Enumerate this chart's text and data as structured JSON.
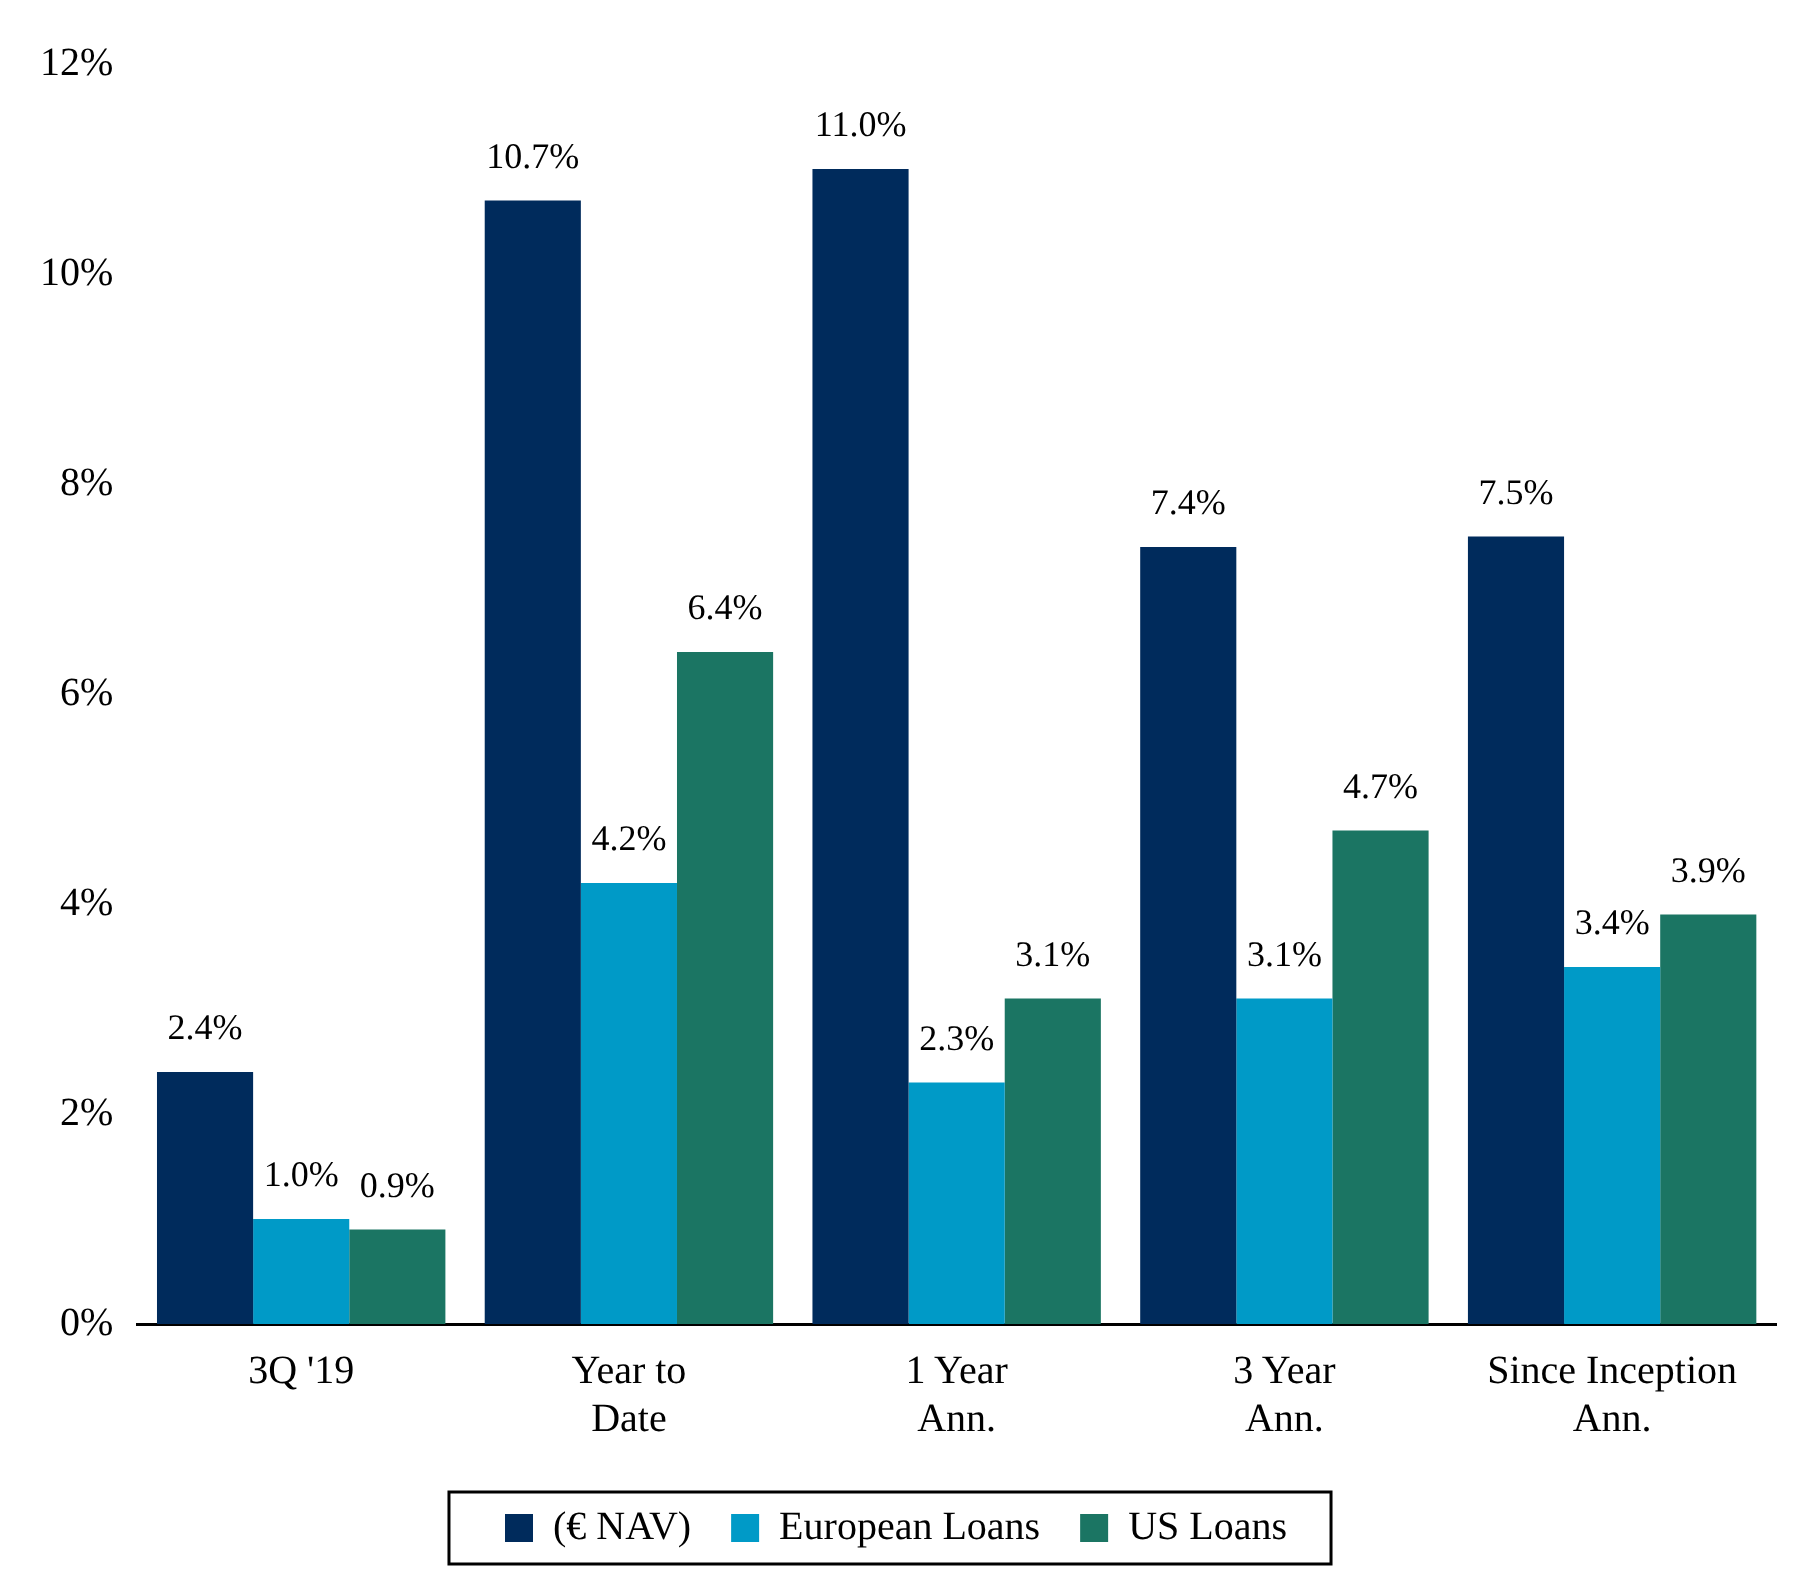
{
  "chart_data": {
    "type": "bar",
    "categories": [
      "3Q '19",
      "Year to\nDate",
      "1 Year\nAnn.",
      "3 Year\nAnn.",
      "Since Inception\nAnn."
    ],
    "series": [
      {
        "name": "(€ NAV)",
        "color": "#002b5c",
        "values": [
          2.4,
          10.7,
          11.0,
          7.4,
          7.5
        ],
        "value_labels": [
          "2.4%",
          "10.7%",
          "11.0%",
          "7.4%",
          "7.5%"
        ]
      },
      {
        "name": "European Loans",
        "color": "#009ac7",
        "values": [
          1.0,
          4.2,
          2.3,
          3.1,
          3.4
        ],
        "value_labels": [
          "1.0%",
          "4.2%",
          "2.3%",
          "3.1%",
          "3.4%"
        ]
      },
      {
        "name": "US Loans",
        "color": "#1b7563",
        "values": [
          0.9,
          6.4,
          3.1,
          4.7,
          3.9
        ],
        "value_labels": [
          "0.9%",
          "6.4%",
          "3.1%",
          "4.7%",
          "3.9%"
        ]
      }
    ],
    "ylim": [
      0,
      12
    ],
    "yticks": [
      {
        "value": 0,
        "label": "0%"
      },
      {
        "value": 2,
        "label": "2%"
      },
      {
        "value": 4,
        "label": "4%"
      },
      {
        "value": 6,
        "label": "6%"
      },
      {
        "value": 8,
        "label": "8%"
      },
      {
        "value": 10,
        "label": "10%"
      },
      {
        "value": 12,
        "label": "12%"
      }
    ],
    "grid": false,
    "legend": "bottom"
  }
}
